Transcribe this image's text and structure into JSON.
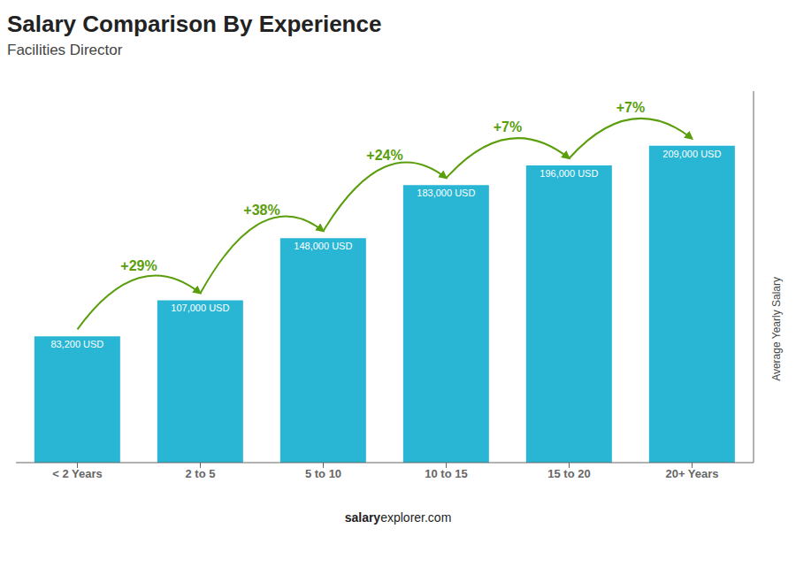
{
  "chart_data": {
    "type": "bar",
    "title": "Salary Comparison By Experience",
    "subtitle": "Facilities Director",
    "categories": [
      "< 2 Years",
      "2 to 5",
      "5 to 10",
      "10 to 15",
      "15 to 20",
      "20+ Years"
    ],
    "values": [
      83200,
      107000,
      148000,
      183000,
      196000,
      209000
    ],
    "value_labels": [
      "83,200 USD",
      "107,000 USD",
      "148,000 USD",
      "183,000 USD",
      "196,000 USD",
      "209,000 USD"
    ],
    "data_labels": true,
    "color": "#29b6d4",
    "ylabel": "Average Yearly Salary",
    "ylim": [
      0,
      245000
    ],
    "tick_labels": "x",
    "grid": false,
    "annotations": [
      {
        "text": "+29%",
        "color": "#5a9e0c"
      },
      {
        "text": "+38%",
        "color": "#5a9e0c"
      },
      {
        "text": "+24%",
        "color": "#5a9e0c"
      },
      {
        "text": "+7%",
        "color": "#5a9e0c"
      },
      {
        "text": "+7%",
        "color": "#5a9e0c"
      }
    ],
    "watermark": [
      "salary",
      "explorer.com"
    ]
  }
}
